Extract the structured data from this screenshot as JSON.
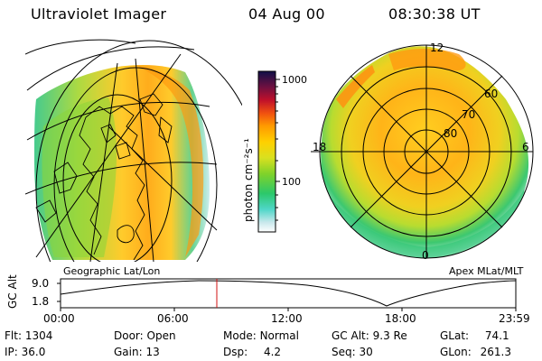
{
  "header": {
    "title": "Ultraviolet Imager",
    "date": "04 Aug 00",
    "time": "08:30:38 UT"
  },
  "colorbar": {
    "unit_label": "photon cm⁻²s⁻¹",
    "tick_labels": [
      "1000",
      "100"
    ]
  },
  "geo_panel": {
    "label": "Geographic Lat/Lon"
  },
  "polar_panel": {
    "label": "Apex MLat/MLT",
    "mlt_labels": [
      "12",
      "18",
      "6",
      "0"
    ],
    "mlat_labels": [
      "60",
      "70",
      "80"
    ]
  },
  "altitude_plot": {
    "ylabel": "GC Alt",
    "y_ticks": [
      "9.0",
      "1.8"
    ],
    "x_ticks": [
      "00:00",
      "06:00",
      "12:00",
      "18:00",
      "23:59"
    ],
    "y_top_value": 9.0,
    "y_bottom_value": 1.8
  },
  "status": {
    "flt_label": "Flt:",
    "flt_value": "1304",
    "ip_label": "IP:",
    "ip_value": "36.0",
    "door_label": "Door:",
    "door_value": "Open",
    "gain_label": "Gain:",
    "gain_value": "13",
    "mode_label": "Mode:",
    "mode_value": "Normal",
    "dsp_label": "Dsp:",
    "dsp_value": "4.2",
    "gcalt_label": "GC Alt:",
    "gcalt_value": "9.3 Re",
    "seq_label": "Seq:",
    "seq_value": "30",
    "glat_label": "GLat:",
    "glat_value": "74.1",
    "glon_label": "GLon:",
    "glon_value": "261.3"
  },
  "colors": {
    "background": "#ffffff",
    "foreground": "#000000",
    "marker": "#d01010"
  }
}
